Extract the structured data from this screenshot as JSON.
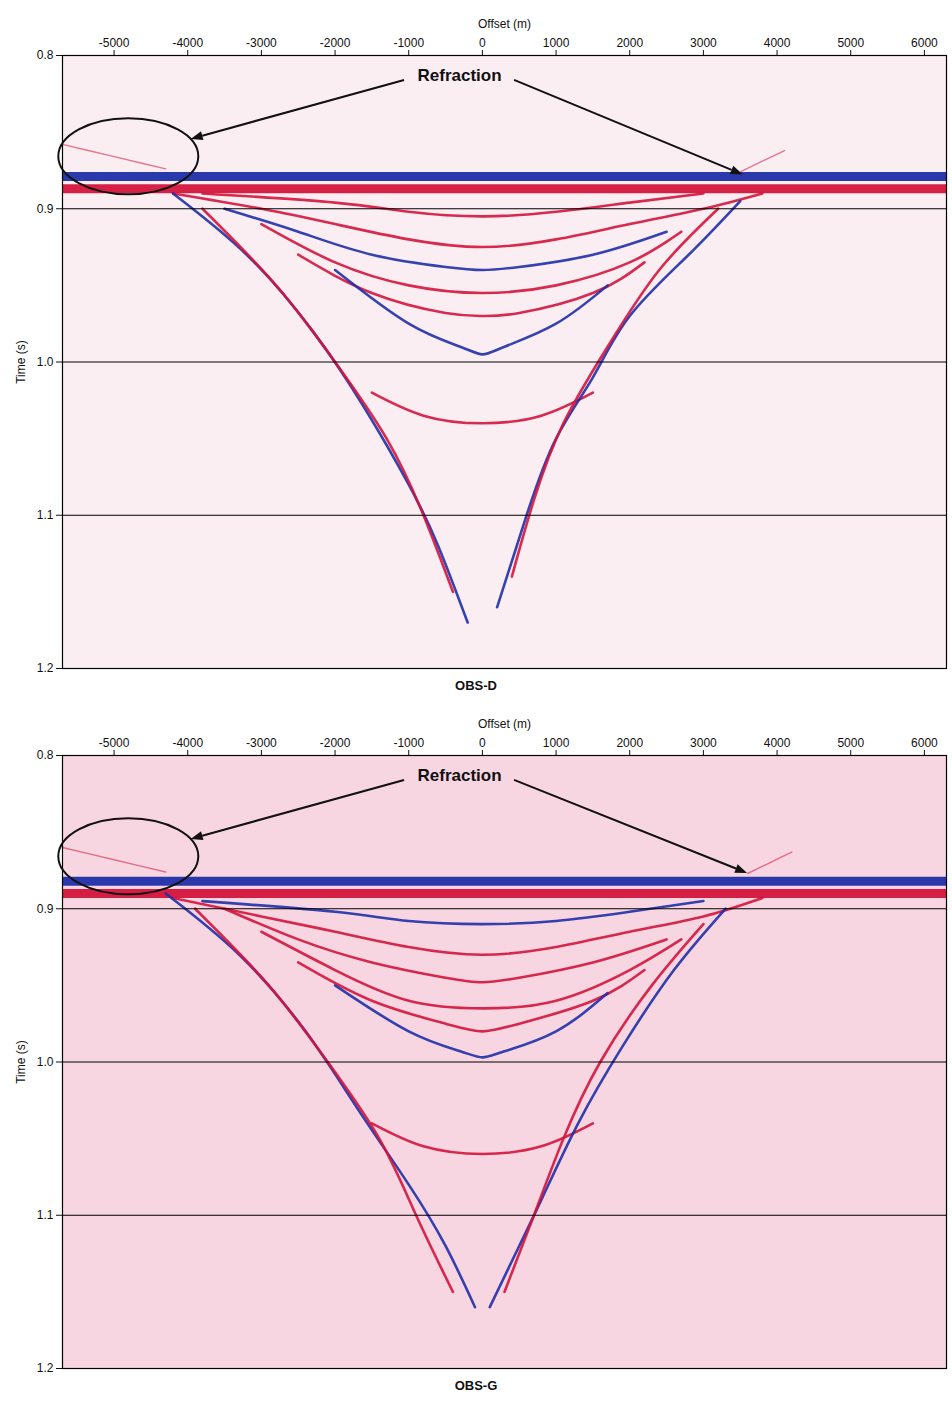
{
  "chart_data": [
    {
      "type": "line",
      "title": "OBS-D",
      "x_label": "Offset (m)",
      "y_label": "Time (s)",
      "xlim": [
        -5700,
        6300
      ],
      "xticks": [
        -5000,
        -4000,
        -3000,
        -2000,
        -1000,
        0,
        1000,
        2000,
        3000,
        4000,
        5000,
        6000
      ],
      "ylim": [
        0.8,
        1.2
      ],
      "yticks": [
        0.8,
        0.9,
        {
          "value": 1,
          "label": "1.0"
        },
        1.1,
        1.2
      ],
      "grid": true,
      "annotations": [
        {
          "text": "Refraction",
          "x": -310,
          "y": 0.813,
          "arrows": [
            {
              "x": -4800,
              "y": 0.866
            },
            {
              "x": 3540,
              "y": 0.878
            }
          ]
        }
      ],
      "series": [
        {
          "color": "#1f2fa8",
          "line_style": "heavy",
          "x": [
            -5700,
            6300
          ],
          "values": [
            0.879,
            0.879
          ]
        },
        {
          "color": "#d4143c",
          "line_style": "heavy",
          "x": [
            -5700,
            6300
          ],
          "values": [
            0.887,
            0.887
          ]
        },
        {
          "color": "#d4143c",
          "line_style": "solid",
          "x": [
            -3800,
            -2000,
            -1000,
            0,
            1000,
            2000,
            3000
          ],
          "values": [
            0.89,
            0.896,
            0.902,
            0.905,
            0.902,
            0.896,
            0.89
          ]
        },
        {
          "color": "#d4143c",
          "line_style": "solid",
          "x": [
            -4200,
            -3000,
            -2000,
            -1000,
            0,
            1000,
            2000,
            3000,
            3800
          ],
          "values": [
            0.89,
            0.9,
            0.91,
            0.92,
            0.925,
            0.92,
            0.91,
            0.9,
            0.89
          ]
        },
        {
          "color": "#1f2fa8",
          "line_style": "solid",
          "x": [
            -3500,
            -2500,
            -1500,
            -500,
            0,
            500,
            1500,
            2500
          ],
          "values": [
            0.9,
            0.915,
            0.93,
            0.938,
            0.94,
            0.938,
            0.93,
            0.915
          ]
        },
        {
          "color": "#d4143c",
          "line_style": "solid",
          "x": [
            -3000,
            -2000,
            -1000,
            0,
            1000,
            2000,
            2700
          ],
          "values": [
            0.91,
            0.935,
            0.95,
            0.955,
            0.95,
            0.935,
            0.915
          ]
        },
        {
          "color": "#d4143c",
          "line_style": "solid",
          "x": [
            -2500,
            -1500,
            -500,
            0,
            500,
            1500,
            2200
          ],
          "values": [
            0.93,
            0.955,
            0.968,
            0.97,
            0.968,
            0.955,
            0.935
          ]
        },
        {
          "color": "#1f2fa8",
          "line_style": "solid",
          "x": [
            -2000,
            -1000,
            -300,
            0,
            300,
            1000,
            1700
          ],
          "values": [
            0.94,
            0.975,
            0.99,
            0.995,
            0.99,
            0.975,
            0.95
          ]
        },
        {
          "color": "#d4143c",
          "line_style": "solid",
          "x": [
            -1500,
            -800,
            0,
            800,
            1500
          ],
          "values": [
            1.02,
            1.035,
            1.04,
            1.035,
            1.02
          ]
        },
        {
          "color": "#1f2fa8",
          "line_style": "solid",
          "x": [
            -4200,
            -3200,
            -2300,
            -1600,
            -1000,
            -600,
            -200
          ],
          "values": [
            0.89,
            0.93,
            0.98,
            1.03,
            1.08,
            1.12,
            1.17
          ]
        },
        {
          "color": "#1f2fa8",
          "line_style": "solid",
          "x": [
            3500,
            2800,
            2000,
            1500,
            1000,
            600,
            200
          ],
          "values": [
            0.895,
            0.93,
            0.97,
            1.01,
            1.05,
            1.1,
            1.16
          ]
        },
        {
          "color": "#d4143c",
          "line_style": "solid",
          "x": [
            -3800,
            -2800,
            -2000,
            -1300,
            -800,
            -400
          ],
          "values": [
            0.9,
            0.95,
            1.0,
            1.05,
            1.1,
            1.15
          ]
        },
        {
          "color": "#d4143c",
          "line_style": "solid",
          "x": [
            3200,
            2400,
            1700,
            1100,
            700,
            400
          ],
          "values": [
            0.9,
            0.94,
            0.99,
            1.04,
            1.09,
            1.14
          ]
        },
        {
          "color": "#d4143c",
          "line_style": "faint",
          "x": [
            -5700,
            -5000,
            -4300
          ],
          "values": [
            0.858,
            0.866,
            0.874
          ]
        },
        {
          "color": "#d4143c",
          "line_style": "faint",
          "x": [
            3500,
            3800,
            4100
          ],
          "values": [
            0.876,
            0.869,
            0.862
          ]
        }
      ]
    },
    {
      "type": "line",
      "title": "OBS-G",
      "x_label": "Offset (m)",
      "y_label": "Time (s)",
      "xlim": [
        -5700,
        6300
      ],
      "xticks": [
        -5000,
        -4000,
        -3000,
        -2000,
        -1000,
        0,
        1000,
        2000,
        3000,
        4000,
        5000,
        6000
      ],
      "ylim": [
        0.8,
        1.2
      ],
      "yticks": [
        0.8,
        0.9,
        {
          "value": 1,
          "label": "1.0"
        },
        1.1,
        1.2
      ],
      "grid": true,
      "annotations": [
        {
          "text": "Refraction",
          "x": -310,
          "y": 0.813,
          "arrows": [
            {
              "x": -4800,
              "y": 0.866
            },
            {
              "x": 3600,
              "y": 0.877
            }
          ]
        }
      ],
      "series": [
        {
          "color": "#1f2fa8",
          "line_style": "heavy",
          "x": [
            -5700,
            6300
          ],
          "values": [
            0.882,
            0.882
          ]
        },
        {
          "color": "#d4143c",
          "line_style": "heavy",
          "x": [
            -5700,
            6300
          ],
          "values": [
            0.89,
            0.89
          ]
        },
        {
          "color": "#1f2fa8",
          "line_style": "solid",
          "x": [
            -3800,
            -2000,
            -1000,
            0,
            1000,
            2000,
            3000
          ],
          "values": [
            0.895,
            0.902,
            0.908,
            0.91,
            0.908,
            0.902,
            0.895
          ]
        },
        {
          "color": "#d4143c",
          "line_style": "solid",
          "x": [
            -4200,
            -3000,
            -2000,
            -1000,
            0,
            1000,
            2000,
            3000,
            3800
          ],
          "values": [
            0.893,
            0.905,
            0.915,
            0.925,
            0.93,
            0.925,
            0.915,
            0.905,
            0.893
          ]
        },
        {
          "color": "#d4143c",
          "line_style": "solid",
          "x": [
            -3500,
            -2500,
            -1500,
            -500,
            0,
            500,
            1500,
            2500
          ],
          "values": [
            0.9,
            0.92,
            0.935,
            0.945,
            0.948,
            0.945,
            0.935,
            0.92
          ]
        },
        {
          "color": "#d4143c",
          "line_style": "solid",
          "x": [
            -3000,
            -2000,
            -1000,
            0,
            1000,
            2000,
            2700
          ],
          "values": [
            0.915,
            0.94,
            0.96,
            0.965,
            0.96,
            0.94,
            0.92
          ]
        },
        {
          "color": "#d4143c",
          "line_style": "solid",
          "x": [
            -2500,
            -1500,
            -500,
            0,
            500,
            1500,
            2200
          ],
          "values": [
            0.935,
            0.96,
            0.975,
            0.98,
            0.975,
            0.96,
            0.94
          ]
        },
        {
          "color": "#1f2fa8",
          "line_style": "solid",
          "x": [
            -2000,
            -1000,
            -300,
            0,
            300,
            1000,
            1700
          ],
          "values": [
            0.95,
            0.98,
            0.993,
            0.997,
            0.993,
            0.98,
            0.955
          ]
        },
        {
          "color": "#d4143c",
          "line_style": "solid",
          "x": [
            -1500,
            -800,
            0,
            800,
            1500
          ],
          "values": [
            1.04,
            1.055,
            1.06,
            1.055,
            1.04
          ]
        },
        {
          "color": "#1f2fa8",
          "line_style": "solid",
          "x": [
            -4300,
            -3300,
            -2400,
            -1700,
            -1000,
            -500,
            -100
          ],
          "values": [
            0.89,
            0.93,
            0.98,
            1.03,
            1.08,
            1.12,
            1.16
          ]
        },
        {
          "color": "#1f2fa8",
          "line_style": "solid",
          "x": [
            3300,
            2600,
            1900,
            1300,
            800,
            400,
            100
          ],
          "values": [
            0.9,
            0.94,
            0.99,
            1.04,
            1.09,
            1.13,
            1.16
          ]
        },
        {
          "color": "#d4143c",
          "line_style": "solid",
          "x": [
            -3900,
            -2900,
            -2100,
            -1400,
            -900,
            -400
          ],
          "values": [
            0.9,
            0.95,
            1.0,
            1.05,
            1.1,
            1.15
          ]
        },
        {
          "color": "#d4143c",
          "line_style": "solid",
          "x": [
            3000,
            2300,
            1600,
            1100,
            700,
            300
          ],
          "values": [
            0.91,
            0.95,
            1.0,
            1.05,
            1.1,
            1.15
          ]
        },
        {
          "color": "#d4143c",
          "line_style": "faint",
          "x": [
            -5700,
            -5000,
            -4300
          ],
          "values": [
            0.86,
            0.868,
            0.876
          ]
        },
        {
          "color": "#d4143c",
          "line_style": "faint",
          "x": [
            3600,
            3900,
            4200
          ],
          "values": [
            0.877,
            0.87,
            0.863
          ]
        }
      ]
    }
  ]
}
